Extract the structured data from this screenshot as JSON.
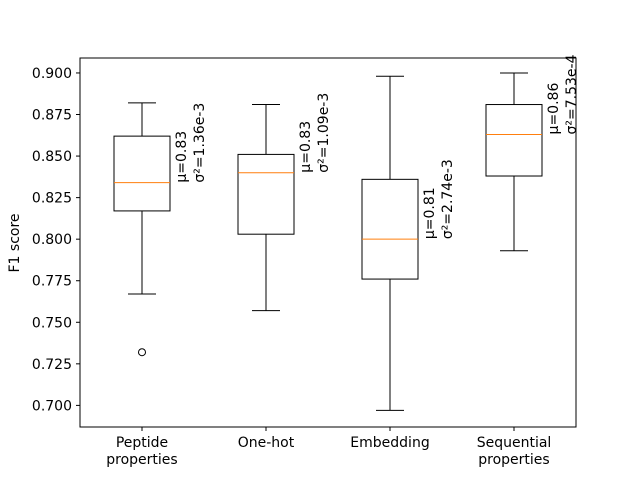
{
  "chart_data": {
    "type": "boxplot",
    "ylabel": "F1 score",
    "ylim": [
      0.687,
      0.909
    ],
    "yticks": [
      0.7,
      0.725,
      0.75,
      0.775,
      0.8,
      0.825,
      0.85,
      0.875,
      0.9
    ],
    "ytick_labels": [
      "0.700",
      "0.725",
      "0.750",
      "0.775",
      "0.800",
      "0.825",
      "0.850",
      "0.875",
      "0.900"
    ],
    "grid": false,
    "colors": {
      "box": "#000000",
      "median": "#ff7f0e",
      "background": "#ffffff"
    },
    "boxes": [
      {
        "label_lines": [
          "Peptide",
          "properties"
        ],
        "whisker_low": 0.767,
        "q1": 0.817,
        "median": 0.834,
        "q3": 0.862,
        "whisker_high": 0.882,
        "outliers": [
          0.732
        ],
        "annot_mu": "μ=0.83",
        "annot_sigma": "σ²=1.36e-3"
      },
      {
        "label_lines": [
          "One-hot"
        ],
        "whisker_low": 0.757,
        "q1": 0.803,
        "median": 0.84,
        "q3": 0.851,
        "whisker_high": 0.881,
        "outliers": [],
        "annot_mu": "μ=0.83",
        "annot_sigma": "σ²=1.09e-3"
      },
      {
        "label_lines": [
          "Embedding"
        ],
        "whisker_low": 0.697,
        "q1": 0.776,
        "median": 0.8,
        "q3": 0.836,
        "whisker_high": 0.898,
        "outliers": [],
        "annot_mu": "μ=0.81",
        "annot_sigma": "σ²=2.74e-3"
      },
      {
        "label_lines": [
          "Sequential",
          "properties"
        ],
        "whisker_low": 0.793,
        "q1": 0.838,
        "median": 0.863,
        "q3": 0.881,
        "whisker_high": 0.9,
        "outliers": [],
        "annot_mu": "μ=0.86",
        "annot_sigma": "σ²=7.53e-4"
      }
    ]
  }
}
